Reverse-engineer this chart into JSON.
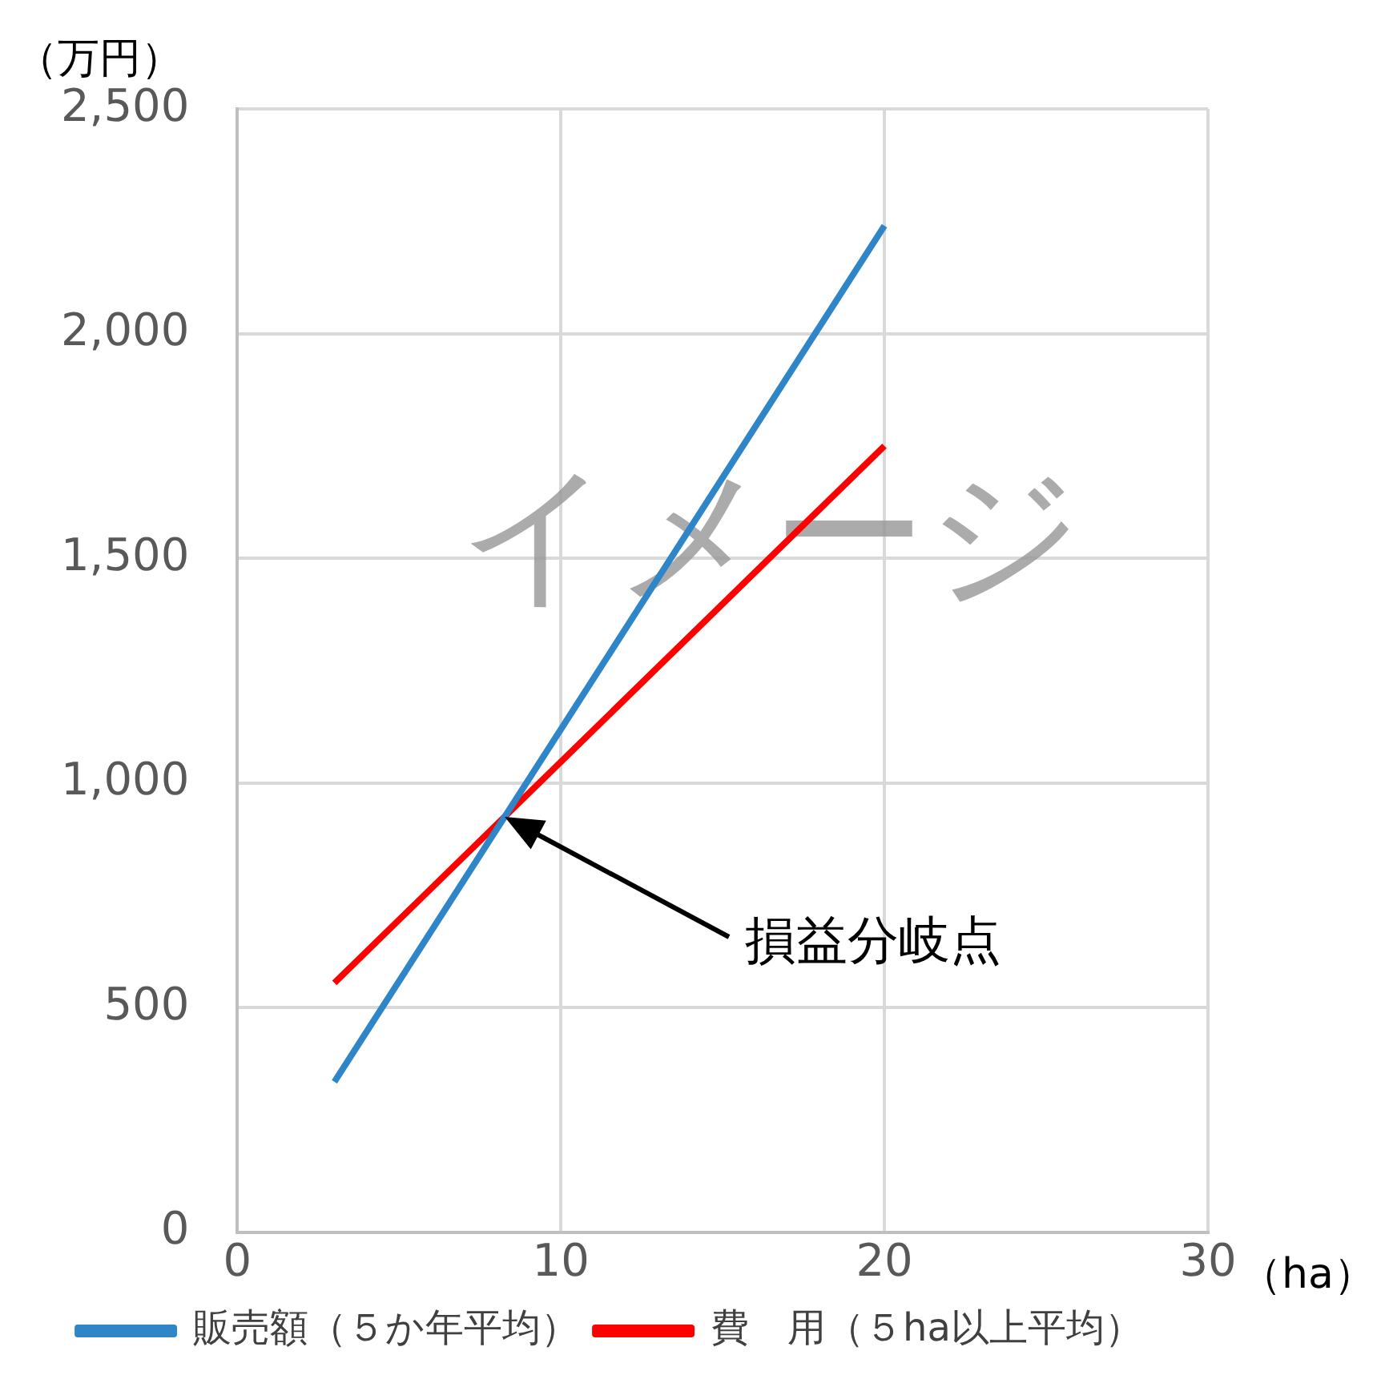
{
  "chart_data": {
    "type": "line",
    "x": [
      3,
      20
    ],
    "ylabel": "（万円）",
    "xlabel": "（ha）",
    "series": [
      {
        "name": "販売額（５か年平均）",
        "color": "#2e86c8",
        "values": [
          335,
          2240
        ]
      },
      {
        "name": "費　用（５ha以上平均）",
        "color": "#ff0000",
        "values": [
          555,
          1750
        ]
      }
    ],
    "xlim": [
      0,
      30
    ],
    "xticks": [
      0,
      10,
      20,
      30
    ],
    "ylim": [
      0,
      2500
    ],
    "yticks": [
      0,
      {
        "value": 500,
        "label": "500"
      },
      {
        "value": 1000,
        "label": "1,000"
      },
      {
        "value": 1500,
        "label": "1,500"
      },
      {
        "value": 2000,
        "label": "2,000"
      },
      {
        "value": 2500,
        "label": "2,500"
      }
    ],
    "grid": true,
    "legend": "bottom",
    "marker": "none",
    "line_style": "solid",
    "annotations": [
      "損益分岐点",
      "イメージ"
    ]
  }
}
